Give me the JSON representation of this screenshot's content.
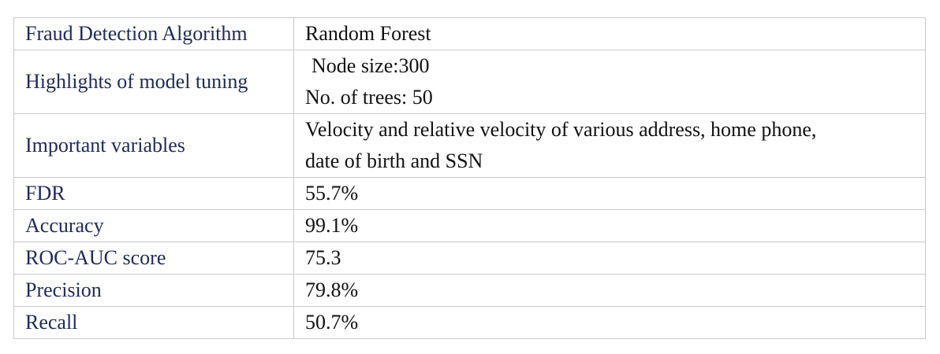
{
  "table": {
    "rows": [
      {
        "label": "Fraud Detection Algorithm",
        "value": [
          "Random Forest"
        ]
      },
      {
        "label": "Highlights of model tuning",
        "value": [
          "Node size:300",
          "No. of trees: 50"
        ]
      },
      {
        "label": "Important variables",
        "value": [
          "Velocity and relative velocity of various address, home phone,",
          "date of birth and SSN"
        ]
      },
      {
        "label": "FDR",
        "value": [
          "55.7%"
        ]
      },
      {
        "label": "Accuracy",
        "value": [
          "99.1%"
        ]
      },
      {
        "label": "ROC-AUC score",
        "value": [
          "75.3"
        ]
      },
      {
        "label": "Precision",
        "value": [
          "79.8%"
        ]
      },
      {
        "label": "Recall",
        "value": [
          "50.7%"
        ]
      }
    ]
  },
  "colors": {
    "label_text": "#1f2a5a",
    "value_text": "#111111",
    "border": "#c9c9c9"
  }
}
